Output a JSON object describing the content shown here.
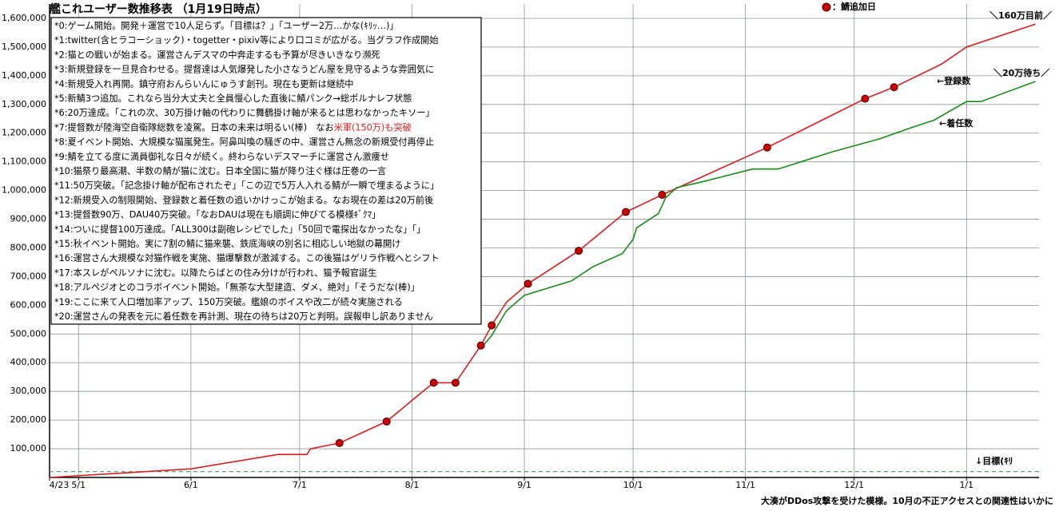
{
  "chart_data": {
    "type": "line",
    "title": "艦これユーザー数推移表 （1月19日時点）",
    "xlim": [
      "4/23",
      "1/21"
    ],
    "xticks": [
      "4/23",
      "5/1",
      "6/1",
      "7/1",
      "8/1",
      "9/1",
      "10/1",
      "11/1",
      "12/1",
      "1/1"
    ],
    "ylim": [
      0,
      1650000
    ],
    "yticks": [
      {
        "value": 100000,
        "label": "100,000"
      },
      {
        "value": 200000,
        "label": "200,000"
      },
      {
        "value": 300000,
        "label": "300,000"
      },
      {
        "value": 400000,
        "label": "400,000"
      },
      {
        "value": 500000,
        "label": "500,000"
      },
      {
        "value": 600000,
        "label": "600,000"
      },
      {
        "value": 700000,
        "label": "700,000"
      },
      {
        "value": 800000,
        "label": "800,000"
      },
      {
        "value": 900000,
        "label": "900,000"
      },
      {
        "value": 1000000,
        "label": "1,000,000"
      },
      {
        "value": 1100000,
        "label": "1,100,000"
      },
      {
        "value": 1200000,
        "label": "1,200,000"
      },
      {
        "value": 1300000,
        "label": "1,300,000"
      },
      {
        "value": 1400000,
        "label": "1,400,000"
      },
      {
        "value": 1500000,
        "label": "1,500,000"
      },
      {
        "value": 1600000,
        "label": "1,600,000"
      }
    ],
    "grid": true,
    "goal": 20000,
    "series": [
      {
        "name": "←登録数",
        "color": "#d42020",
        "style": "line",
        "x": [
          "4/23",
          "6/1",
          "6/25",
          "7/3",
          "7/4",
          "7/12",
          "7/25",
          "8/4",
          "8/7",
          "8/13",
          "8/20",
          "8/23",
          "8/27",
          "9/2",
          "9/16",
          "9/29",
          "10/9",
          "11/7",
          "12/4",
          "12/12",
          "12/25",
          "1/1",
          "1/20"
        ],
        "values": [
          0,
          30000,
          80000,
          80000,
          100000,
          120000,
          195000,
          300000,
          330000,
          330000,
          460000,
          530000,
          610000,
          675000,
          790000,
          925000,
          985000,
          1150000,
          1320000,
          1360000,
          1440000,
          1500000,
          1580000
        ]
      },
      {
        "name": "←着任数",
        "color": "#1a8a1a",
        "style": "line",
        "x": [
          "8/21",
          "8/23",
          "8/27",
          "9/1",
          "9/14",
          "9/20",
          "9/28",
          "10/1",
          "10/2",
          "10/8",
          "10/10",
          "10/13",
          "10/20",
          "11/3",
          "11/10",
          "11/25",
          "12/8",
          "12/17",
          "12/23",
          "1/1",
          "1/5",
          "1/20"
        ],
        "values": [
          465000,
          495000,
          580000,
          635000,
          685000,
          735000,
          780000,
          830000,
          870000,
          920000,
          975000,
          1010000,
          1030000,
          1075000,
          1075000,
          1135000,
          1180000,
          1220000,
          1245000,
          1310000,
          1310000,
          1380000
        ]
      },
      {
        "name": "：鯖追加日",
        "color": "#cc0000",
        "style": "markers",
        "x": [
          "7/12",
          "7/25",
          "8/7",
          "8/13",
          "8/20",
          "8/23",
          "9/2",
          "9/16",
          "9/29",
          "10/9",
          "11/7",
          "12/4",
          "12/12"
        ],
        "values": [
          120000,
          195000,
          330000,
          330000,
          460000,
          530000,
          675000,
          790000,
          925000,
          985000,
          1150000,
          1320000,
          1360000
        ]
      }
    ],
    "annotations": [
      {
        "text": "＼160万目前／",
        "color": "#d42020"
      },
      {
        "text": "＼20万待ち／",
        "color": "#1a8a1a"
      },
      {
        "text": "↓目標(ｷﾘ",
        "color": "#1a8a1a"
      },
      {
        "text": "大湊がDDos攻撃を受けた模様。10月の不正アクセスとの関連性はいかに",
        "color": "#d42020"
      }
    ],
    "notes": [
      "*0:ゲーム開始。開発＋運営で10人足らず。「目標は？」「ユーザー2万…かな(ｷﾘｯ…)」",
      "*1:twitter(含ヒラコーショック)・togetter・pixiv等により口コミが広がる。当グラフ作成開始",
      "*2:猫との戦いが始まる。運営さんデスマの中奔走するも予算が尽きいきなり瀕死",
      "*3:新規登録を一旦見合わせる。提督達は人気爆発した小さなうどん屋を見守るような雰囲気に",
      "*4:新規受入れ再開。鎮守府おんらいんにゅうす創刊。現在も更新は継続中",
      "*5:新鯖3つ追加。これなら当分大丈夫と全員慢心した直後に鯖パンク→総ポルナレフ状態",
      "*6:20万達成。「これの次、30万掛け軸の代わりに舞鶴掛け軸が来るとは思わなかったキソー」",
      {
        "text": "*7:提督数が陸海空自衛隊総数を凌駕。日本の未来は明るい(棒)　なお",
        "highlight": "米軍(150万)も突破"
      },
      "*8:夏イベント開始、大規模な猫嵐発生。阿鼻叫喚の騒ぎの中、運営さん無念の新規受付再停止",
      "*9:鯖を立てる度に満員御礼な日々が続く。終わらないデスマーチに運営さん激痩せ",
      "*10:猫祭り最高潮、半数の鯖が猫に沈む。日本全国に猫が降り注ぐ様は圧巻の一言",
      "*11:50万突破。「記念掛け軸が配布されたぞ」「この辺で5万人入れる鯖が一瞬で埋まるように」",
      "*12:新規受入の制限開始、登録数と着任数の追いかけっこが始まる。なお現在の差は20万前後",
      "*13:提督数90万、DAU40万突破。「なおDAUは現在も順調に伸びてる模様ｷﾞｸﾏ」",
      "*14:ついに提督100万達成。「ALL300は副砲レシピでした」「50回で電探出なかったな」「」",
      "*15:秋イベント開始。実に7割の鯖に猫来襲、鉄底海峡の別名に相応しい地獄の幕開け",
      "*16:運営さん大規模な対猫作戦を実施、猫爆撃数が激減する。この後猫はゲリラ作戦へとシフト",
      "*17:本スレがペルソナに沈む。以降たらばとの住み分けが行われ、猫予報官誕生",
      "*18:アルペジオとのコラボイベント開始。「無茶な大型建造、ダメ、絶対」「そうだな(棒)」",
      "*19:ここに来て人口増加率アップ、150万突破。艦娘のボイスや改二が続々実施される",
      "*20:運営さんの発表を元に着任数を再計測、現在の待ちは20万と判明。誤報申し訳ありません"
    ]
  }
}
